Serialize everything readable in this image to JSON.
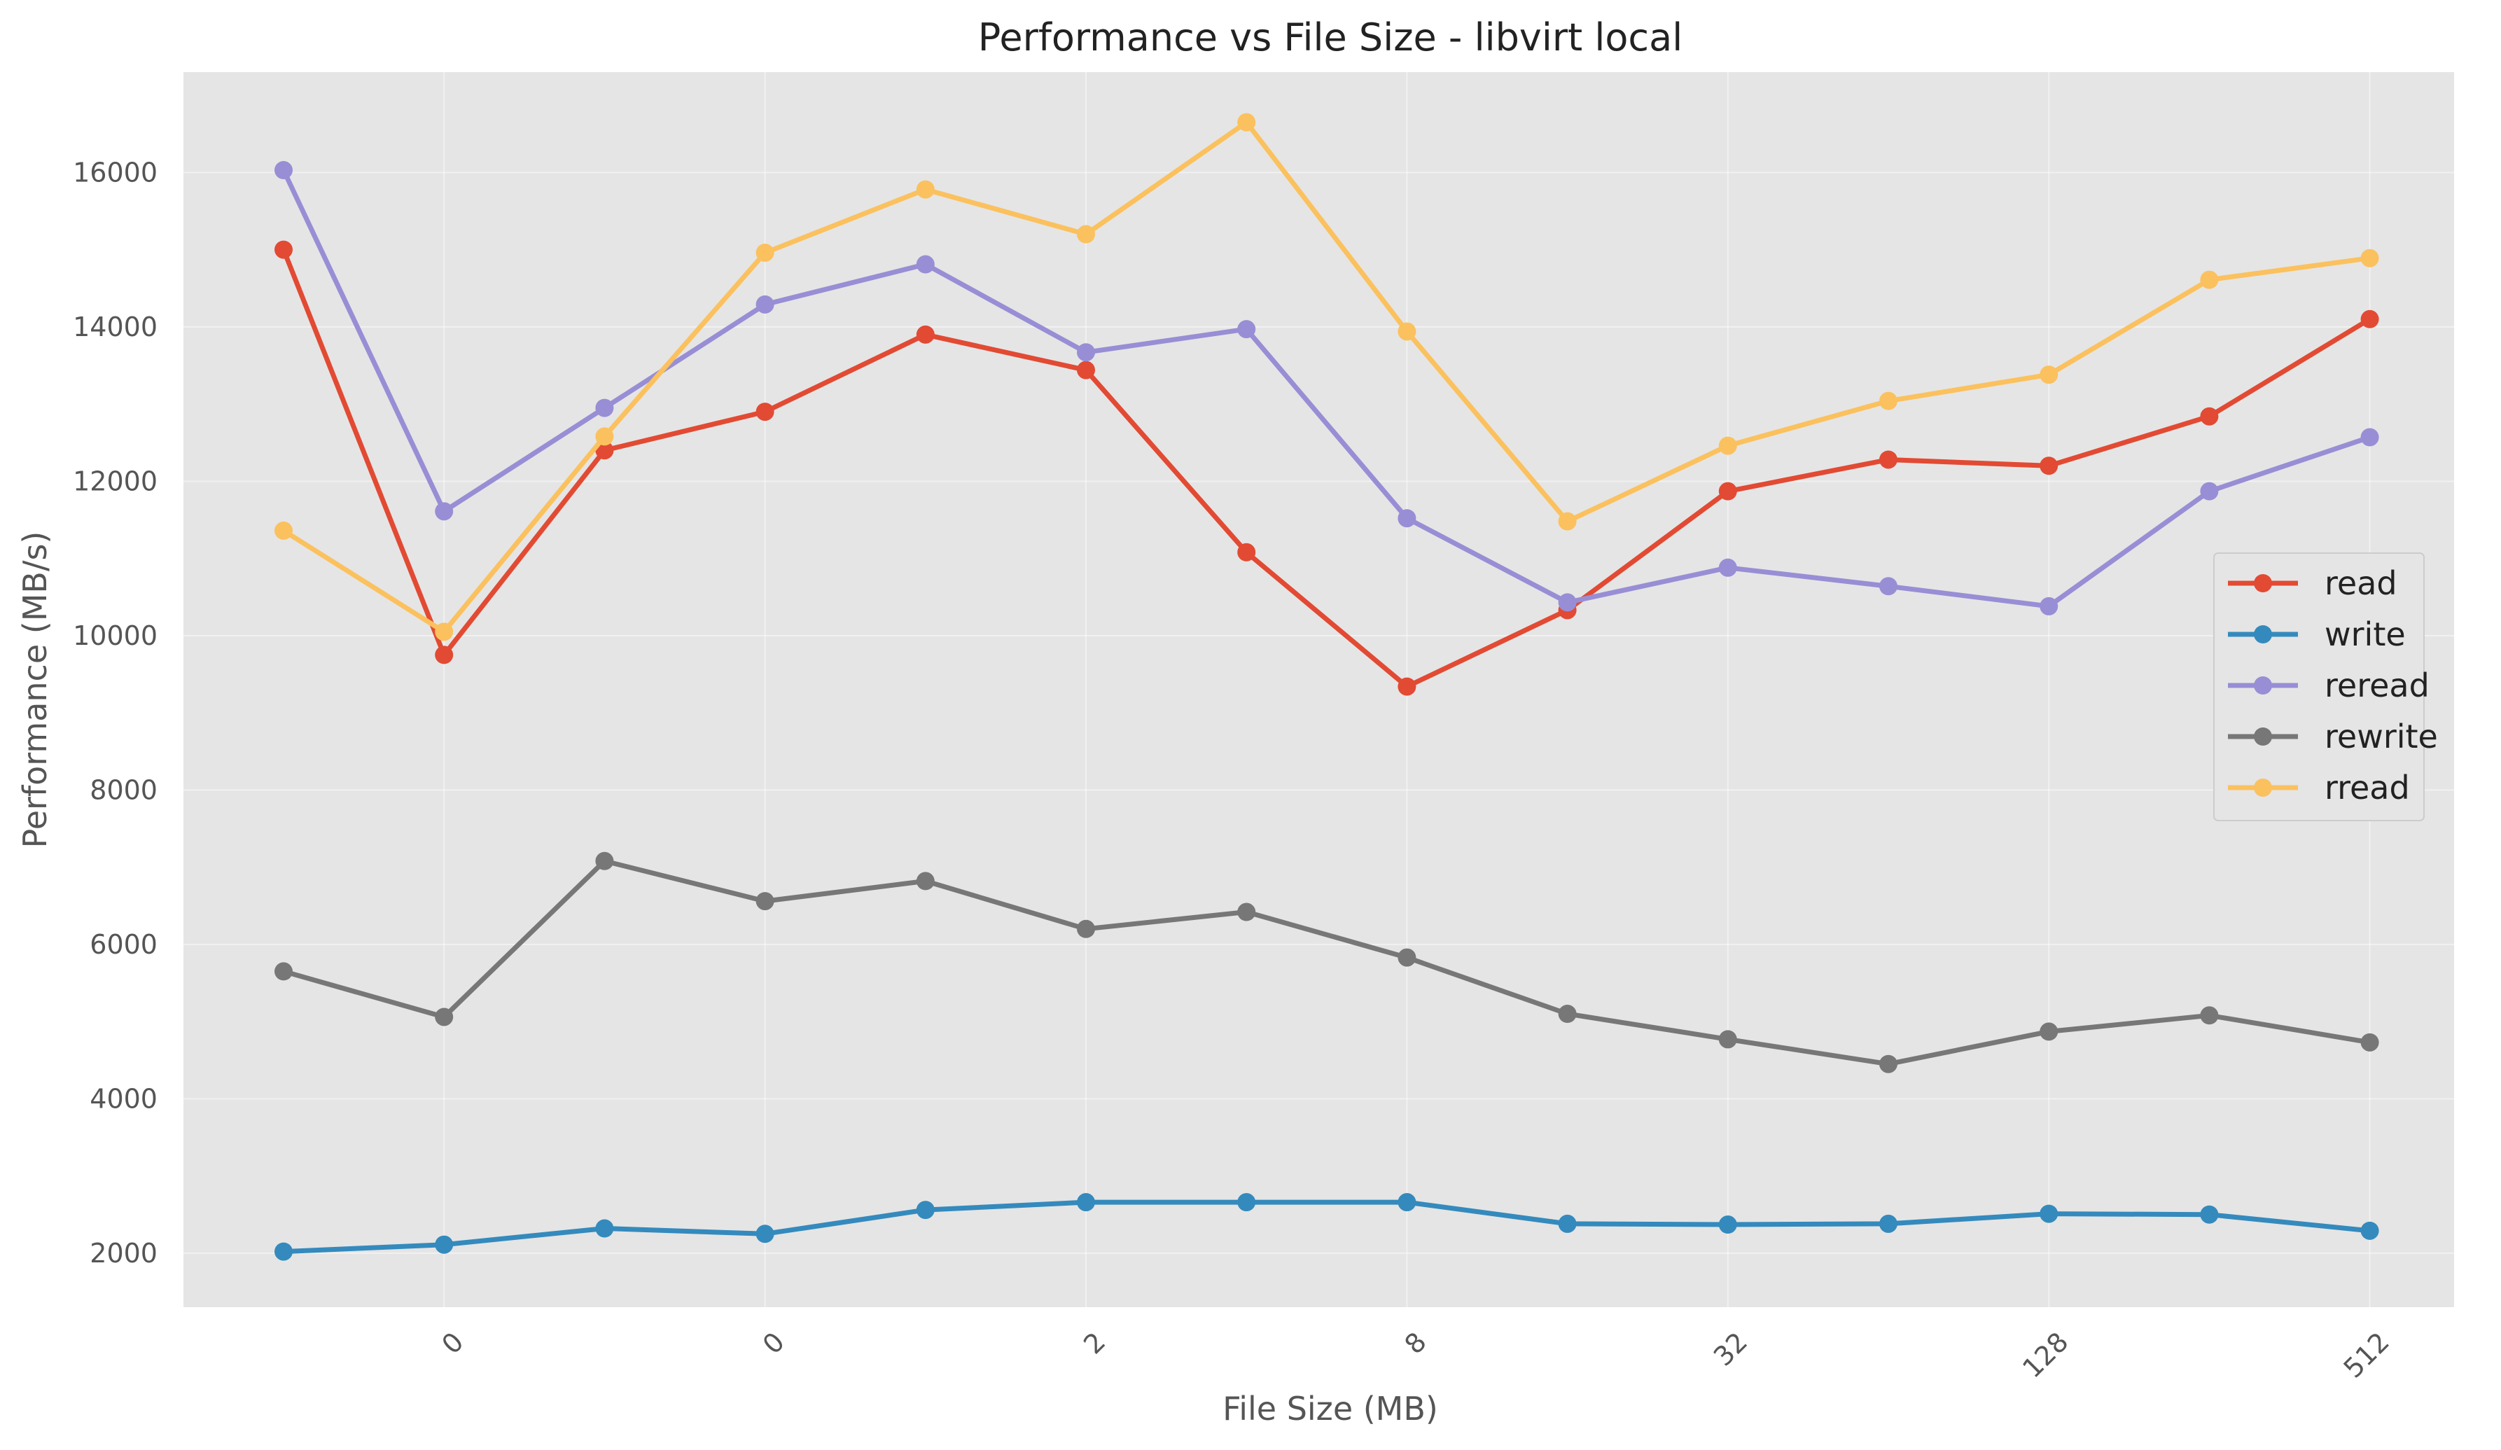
{
  "chart_data": {
    "type": "line",
    "title": "Performance vs File Size - libvirt local",
    "xlabel": "File Size (MB)",
    "ylabel": "Performance (MB/s)",
    "x_tick_labels": [
      "0",
      "0",
      "2",
      "8",
      "32",
      "128",
      "512"
    ],
    "y_ticks": [
      2000,
      4000,
      6000,
      8000,
      10000,
      12000,
      14000,
      16000
    ],
    "ylim": [
      1300,
      17300
    ],
    "grid": true,
    "legend_position": "center-right",
    "series": [
      {
        "name": "read",
        "color": "#E24A33",
        "values": [
          15000,
          9750,
          12400,
          12900,
          13900,
          13440,
          11080,
          9340,
          10330,
          11870,
          12280,
          12200,
          12840,
          14100
        ]
      },
      {
        "name": "write",
        "color": "#348ABD",
        "values": [
          2020,
          2110,
          2320,
          2250,
          2560,
          2660,
          2660,
          2660,
          2380,
          2370,
          2380,
          2510,
          2500,
          2290
        ]
      },
      {
        "name": "reread",
        "color": "#988ED5",
        "values": [
          16030,
          11610,
          12950,
          14290,
          14810,
          13670,
          13970,
          11520,
          10430,
          10880,
          10640,
          10380,
          11870,
          12570
        ]
      },
      {
        "name": "rewrite",
        "color": "#777777",
        "values": [
          5650,
          5060,
          7080,
          6560,
          6820,
          6200,
          6420,
          5830,
          5100,
          4770,
          4450,
          4870,
          5080,
          4730
        ]
      },
      {
        "name": "rread",
        "color": "#FBC15E",
        "values": [
          11360,
          10050,
          12580,
          14960,
          15780,
          15200,
          16650,
          13940,
          11480,
          12460,
          13040,
          13380,
          14610,
          14890
        ]
      }
    ]
  }
}
